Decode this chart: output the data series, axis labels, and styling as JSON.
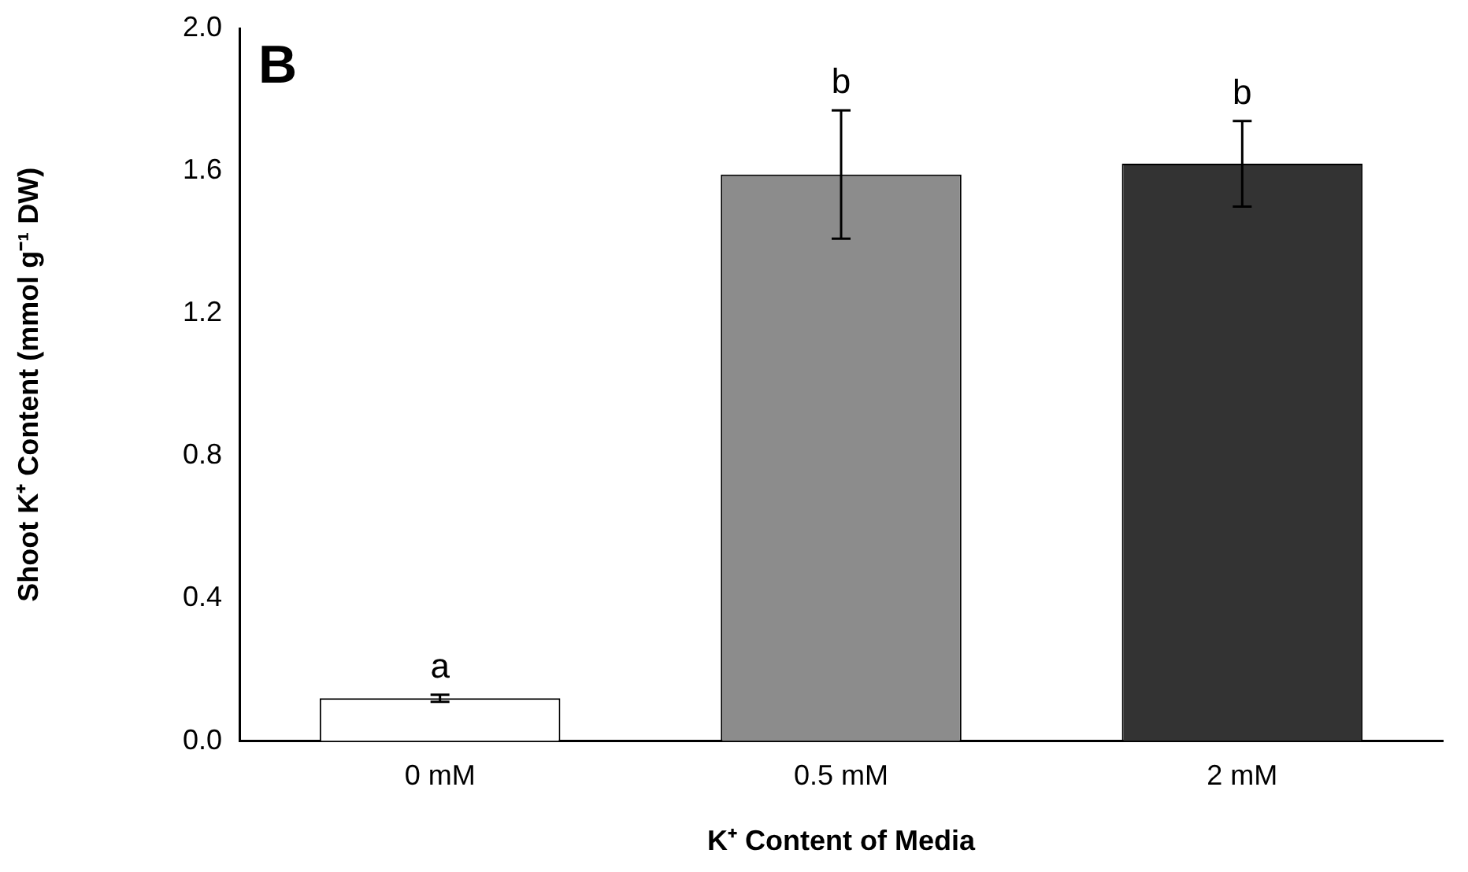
{
  "chart_data": {
    "type": "bar",
    "xlabel": "K⁺ Content of Media",
    "ylabel": "Shoot K⁺ Content (mmol g⁻¹ DW)",
    "categories": [
      "0 mM",
      "0.5 mM",
      "2 mM"
    ],
    "values": [
      0.12,
      1.59,
      1.62
    ],
    "colors": [
      "#ffffff",
      "#8c8c8c",
      "#333333"
    ],
    "errors": [
      0.01,
      0.18,
      0.12
    ],
    "ylim": [
      0,
      2
    ],
    "yticks": [
      {
        "value": 0,
        "label": "0.0"
      },
      {
        "value": 0.4,
        "label": "0.4"
      },
      {
        "value": 0.8,
        "label": "0.8"
      },
      {
        "value": 1.2,
        "label": "1.2"
      },
      {
        "value": 1.6,
        "label": "1.6"
      },
      {
        "value": 2,
        "label": "2.0"
      }
    ],
    "grid": false,
    "legend": false,
    "annotations": [
      "B",
      {
        "text": "a",
        "x": "0 mM",
        "y": 0.13
      },
      {
        "text": "b",
        "x": "0.5 mM",
        "y": 1.77
      },
      {
        "text": "b",
        "x": "2 mM",
        "y": 1.74
      }
    ]
  }
}
